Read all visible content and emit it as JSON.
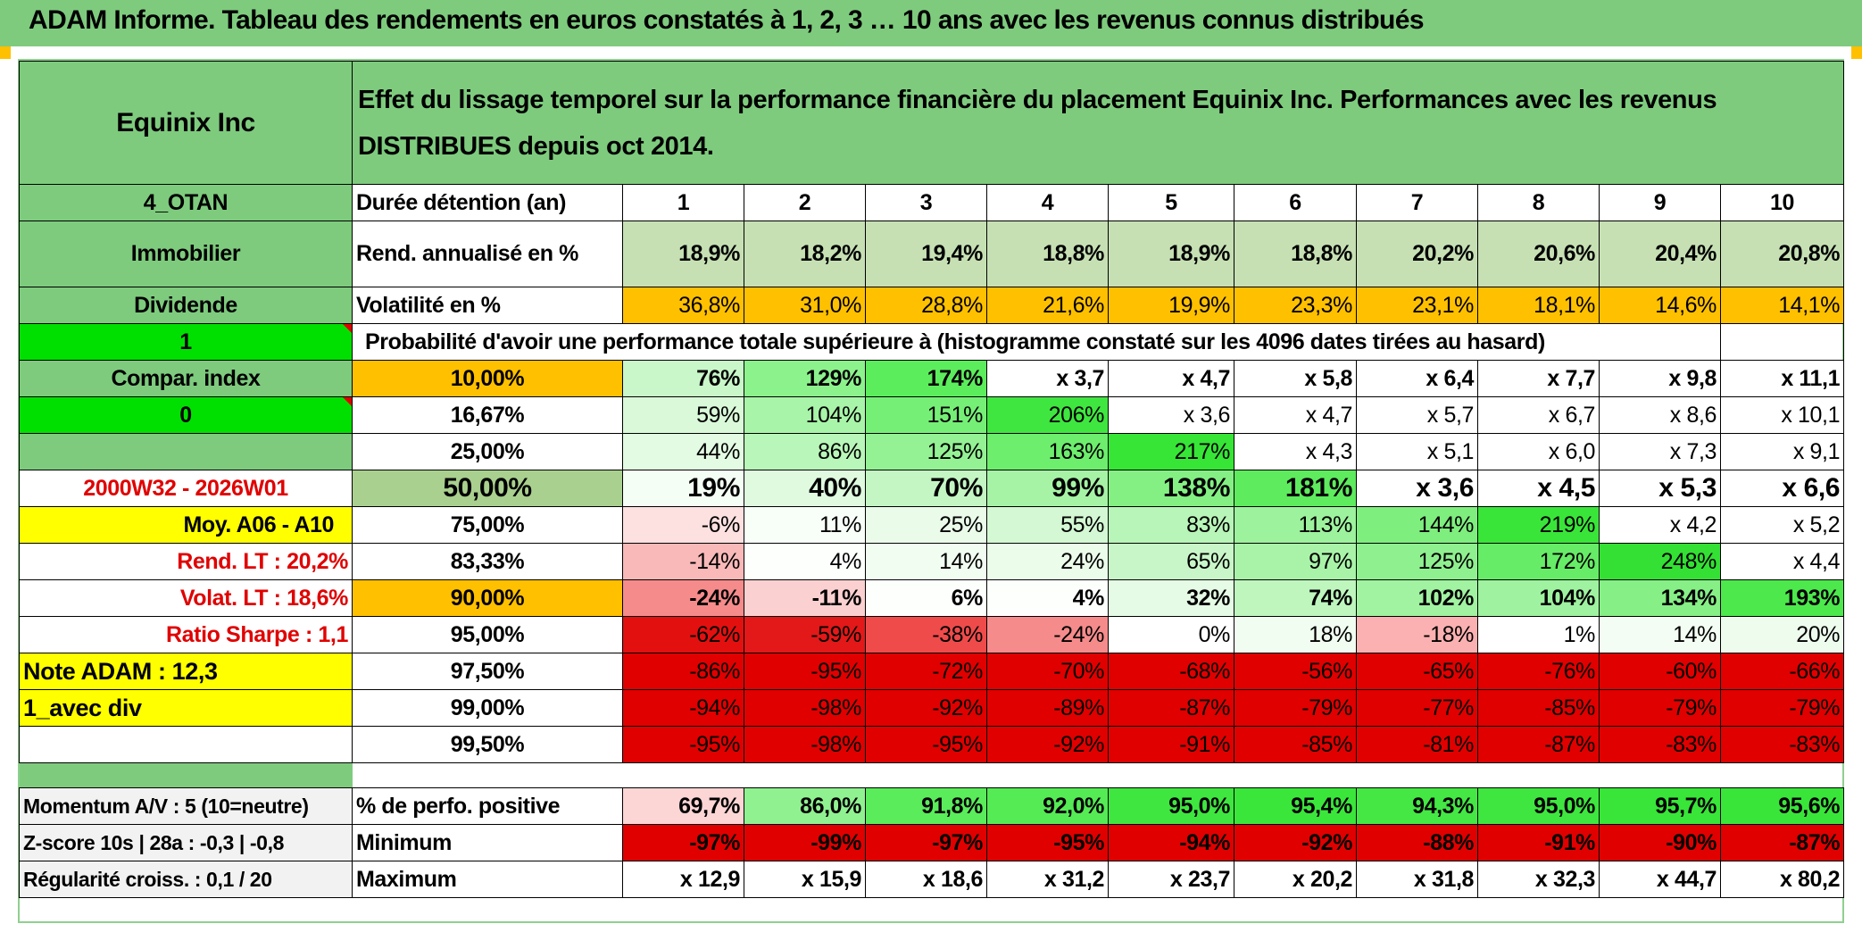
{
  "title": "ADAM Informe. Tableau des rendements en euros constatés à 1, 2, 3 … 10 ans avec les revenus connus distribués",
  "left": {
    "name": "Equinix Inc",
    "code": "4_OTAN",
    "sector": "Immobilier",
    "type": "Dividende",
    "val1": "1",
    "compar": "Compar. index",
    "val0": "0",
    "period": "2000W32 - 2026W01",
    "moy": "Moy. A06 - A10",
    "rend_lt": "Rend. LT :   20,2%",
    "volat_lt": "Volat. LT :   18,6%",
    "sharpe": "Ratio Sharpe :    1,1",
    "note": "Note ADAM : 12,3",
    "avec_div": "1_avec div",
    "momentum": "Momentum A/V : 5 (10=neutre)",
    "zscore": "Z-score 10s | 28a : -0,3 | -0,8",
    "regularite": "Régularité croiss. : 0,1 / 20"
  },
  "description": "Effet du lissage temporel sur la performance financière du placement Equinix Inc. Performances avec les revenus DISTRIBUES depuis oct 2014.",
  "duration_label": "Durée détention (an)",
  "years": [
    "1",
    "2",
    "3",
    "4",
    "5",
    "6",
    "7",
    "8",
    "9",
    "10"
  ],
  "rend_label": "Rend. annualisé en %",
  "rend": [
    "18,9%",
    "18,2%",
    "19,4%",
    "18,8%",
    "18,9%",
    "18,8%",
    "20,2%",
    "20,6%",
    "20,4%",
    "20,8%"
  ],
  "vol_label": "Volatilité en %",
  "vol": [
    "36,8%",
    "31,0%",
    "28,8%",
    "21,6%",
    "19,9%",
    "23,3%",
    "23,1%",
    "18,1%",
    "14,6%",
    "14,1%"
  ],
  "prob_label": "Probabilité d'avoir une performance totale supérieure à (histogramme constaté sur les 4096 dates tirées au hasard)",
  "quantiles": [
    {
      "p": "10,00%",
      "v": [
        "76%",
        "129%",
        "174%",
        "x 3,7",
        "x 4,7",
        "x 5,8",
        "x 6,4",
        "x 7,7",
        "x 9,8",
        "x 11,1"
      ],
      "c": [
        "#c9f7c9",
        "#8cf28c",
        "#5ced5c",
        "#fff",
        "#fff",
        "#fff",
        "#fff",
        "#fff",
        "#fff",
        "#fff"
      ]
    },
    {
      "p": "16,67%",
      "v": [
        "59%",
        "104%",
        "151%",
        "206%",
        "x 3,6",
        "x 4,7",
        "x 5,7",
        "x 6,7",
        "x 8,6",
        "x 10,1"
      ],
      "c": [
        "#d9f9d9",
        "#a8f4a8",
        "#76ef76",
        "#3fe63f",
        "#fff",
        "#fff",
        "#fff",
        "#fff",
        "#fff",
        "#fff"
      ]
    },
    {
      "p": "25,00%",
      "v": [
        "44%",
        "86%",
        "125%",
        "163%",
        "217%",
        "x 4,3",
        "x 5,1",
        "x 6,0",
        "x 7,3",
        "x 9,1"
      ],
      "c": [
        "#e3fbe3",
        "#b9f6b9",
        "#94f294",
        "#6dee6d",
        "#36e536",
        "#fff",
        "#fff",
        "#fff",
        "#fff",
        "#fff"
      ]
    },
    {
      "p": "50,00%",
      "v": [
        "19%",
        "40%",
        "70%",
        "99%",
        "138%",
        "181%",
        "x 3,6",
        "x 4,5",
        "x 5,3",
        "x 6,6"
      ],
      "c": [
        "#f4fef4",
        "#e0fae0",
        "#c4f6c4",
        "#a6f3a6",
        "#84f084",
        "#5eeb5e",
        "#fff",
        "#fff",
        "#fff",
        "#fff"
      ]
    },
    {
      "p": "75,00%",
      "v": [
        "-6%",
        "11%",
        "25%",
        "55%",
        "83%",
        "113%",
        "144%",
        "219%",
        "x 4,2",
        "x 5,2"
      ],
      "c": [
        "#fde0e0",
        "#f8fef8",
        "#eafbea",
        "#d3f8d3",
        "#b8f5b8",
        "#9df29d",
        "#7eee7e",
        "#39e539",
        "#fff",
        "#fff"
      ]
    },
    {
      "p": "83,33%",
      "v": [
        "-14%",
        "4%",
        "14%",
        "24%",
        "65%",
        "97%",
        "125%",
        "172%",
        "248%",
        "x 4,4"
      ],
      "c": [
        "#f9b9b9",
        "#fcfffc",
        "#f2fdf2",
        "#ebfcea",
        "#c9f6c9",
        "#a9f3a9",
        "#8ff08f",
        "#66ec66",
        "#33e033",
        "#fff"
      ]
    },
    {
      "p": "90,00%",
      "v": [
        "-24%",
        "-11%",
        "6%",
        "4%",
        "32%",
        "74%",
        "102%",
        "104%",
        "134%",
        "193%"
      ],
      "c": [
        "#f58b8b",
        "#fbd0d0",
        "#fdfffd",
        "#fdfffd",
        "#e5fbe5",
        "#bef6be",
        "#a1f2a1",
        "#9ff29f",
        "#86ef86",
        "#4ce84c"
      ]
    },
    {
      "p": "95,00%",
      "v": [
        "-62%",
        "-59%",
        "-38%",
        "-24%",
        "0%",
        "18%",
        "-18%",
        "1%",
        "14%",
        "20%"
      ],
      "c": [
        "#e31010",
        "#e31818",
        "#ef4b4b",
        "#f58b8b",
        "#ffffff",
        "#f1fdf1",
        "#fbb1b1",
        "#fefffe",
        "#f3fdf3",
        "#eefcee"
      ]
    },
    {
      "p": "97,50%",
      "v": [
        "-86%",
        "-95%",
        "-72%",
        "-70%",
        "-68%",
        "-56%",
        "-65%",
        "-76%",
        "-60%",
        "-66%"
      ],
      "c": [
        "#e00000",
        "#e00000",
        "#e00000",
        "#e00000",
        "#e00000",
        "#e00000",
        "#e00000",
        "#e00000",
        "#e00000",
        "#e00000"
      ]
    },
    {
      "p": "99,00%",
      "v": [
        "-94%",
        "-98%",
        "-92%",
        "-89%",
        "-87%",
        "-79%",
        "-77%",
        "-85%",
        "-79%",
        "-79%"
      ],
      "c": [
        "#e00000",
        "#e00000",
        "#e00000",
        "#e00000",
        "#e00000",
        "#e00000",
        "#e00000",
        "#e00000",
        "#e00000",
        "#e00000"
      ]
    },
    {
      "p": "99,50%",
      "v": [
        "-95%",
        "-98%",
        "-95%",
        "-92%",
        "-91%",
        "-85%",
        "-81%",
        "-87%",
        "-83%",
        "-83%"
      ],
      "c": [
        "#e00000",
        "#e00000",
        "#e00000",
        "#e00000",
        "#e00000",
        "#e00000",
        "#e00000",
        "#e00000",
        "#e00000",
        "#e00000"
      ]
    }
  ],
  "positive_label": "% de perfo. positive",
  "positive": [
    "69,7%",
    "86,0%",
    "91,8%",
    "92,0%",
    "95,0%",
    "95,4%",
    "94,3%",
    "95,0%",
    "95,7%",
    "95,6%"
  ],
  "positive_colors": [
    "#fcd5d5",
    "#90f190",
    "#5aec5a",
    "#55eb55",
    "#3fe63f",
    "#3be63b",
    "#44e744",
    "#3fe63f",
    "#38e538",
    "#3ae53a"
  ],
  "min_label": "Minimum",
  "min": [
    "-97%",
    "-99%",
    "-97%",
    "-95%",
    "-94%",
    "-92%",
    "-88%",
    "-91%",
    "-90%",
    "-87%"
  ],
  "max_label": "Maximum",
  "max": [
    "x 12,9",
    "x 15,9",
    "x 18,6",
    "x 31,2",
    "x 23,7",
    "x 20,2",
    "x 31,8",
    "x 32,3",
    "x 44,7",
    "x 80,2"
  ]
}
